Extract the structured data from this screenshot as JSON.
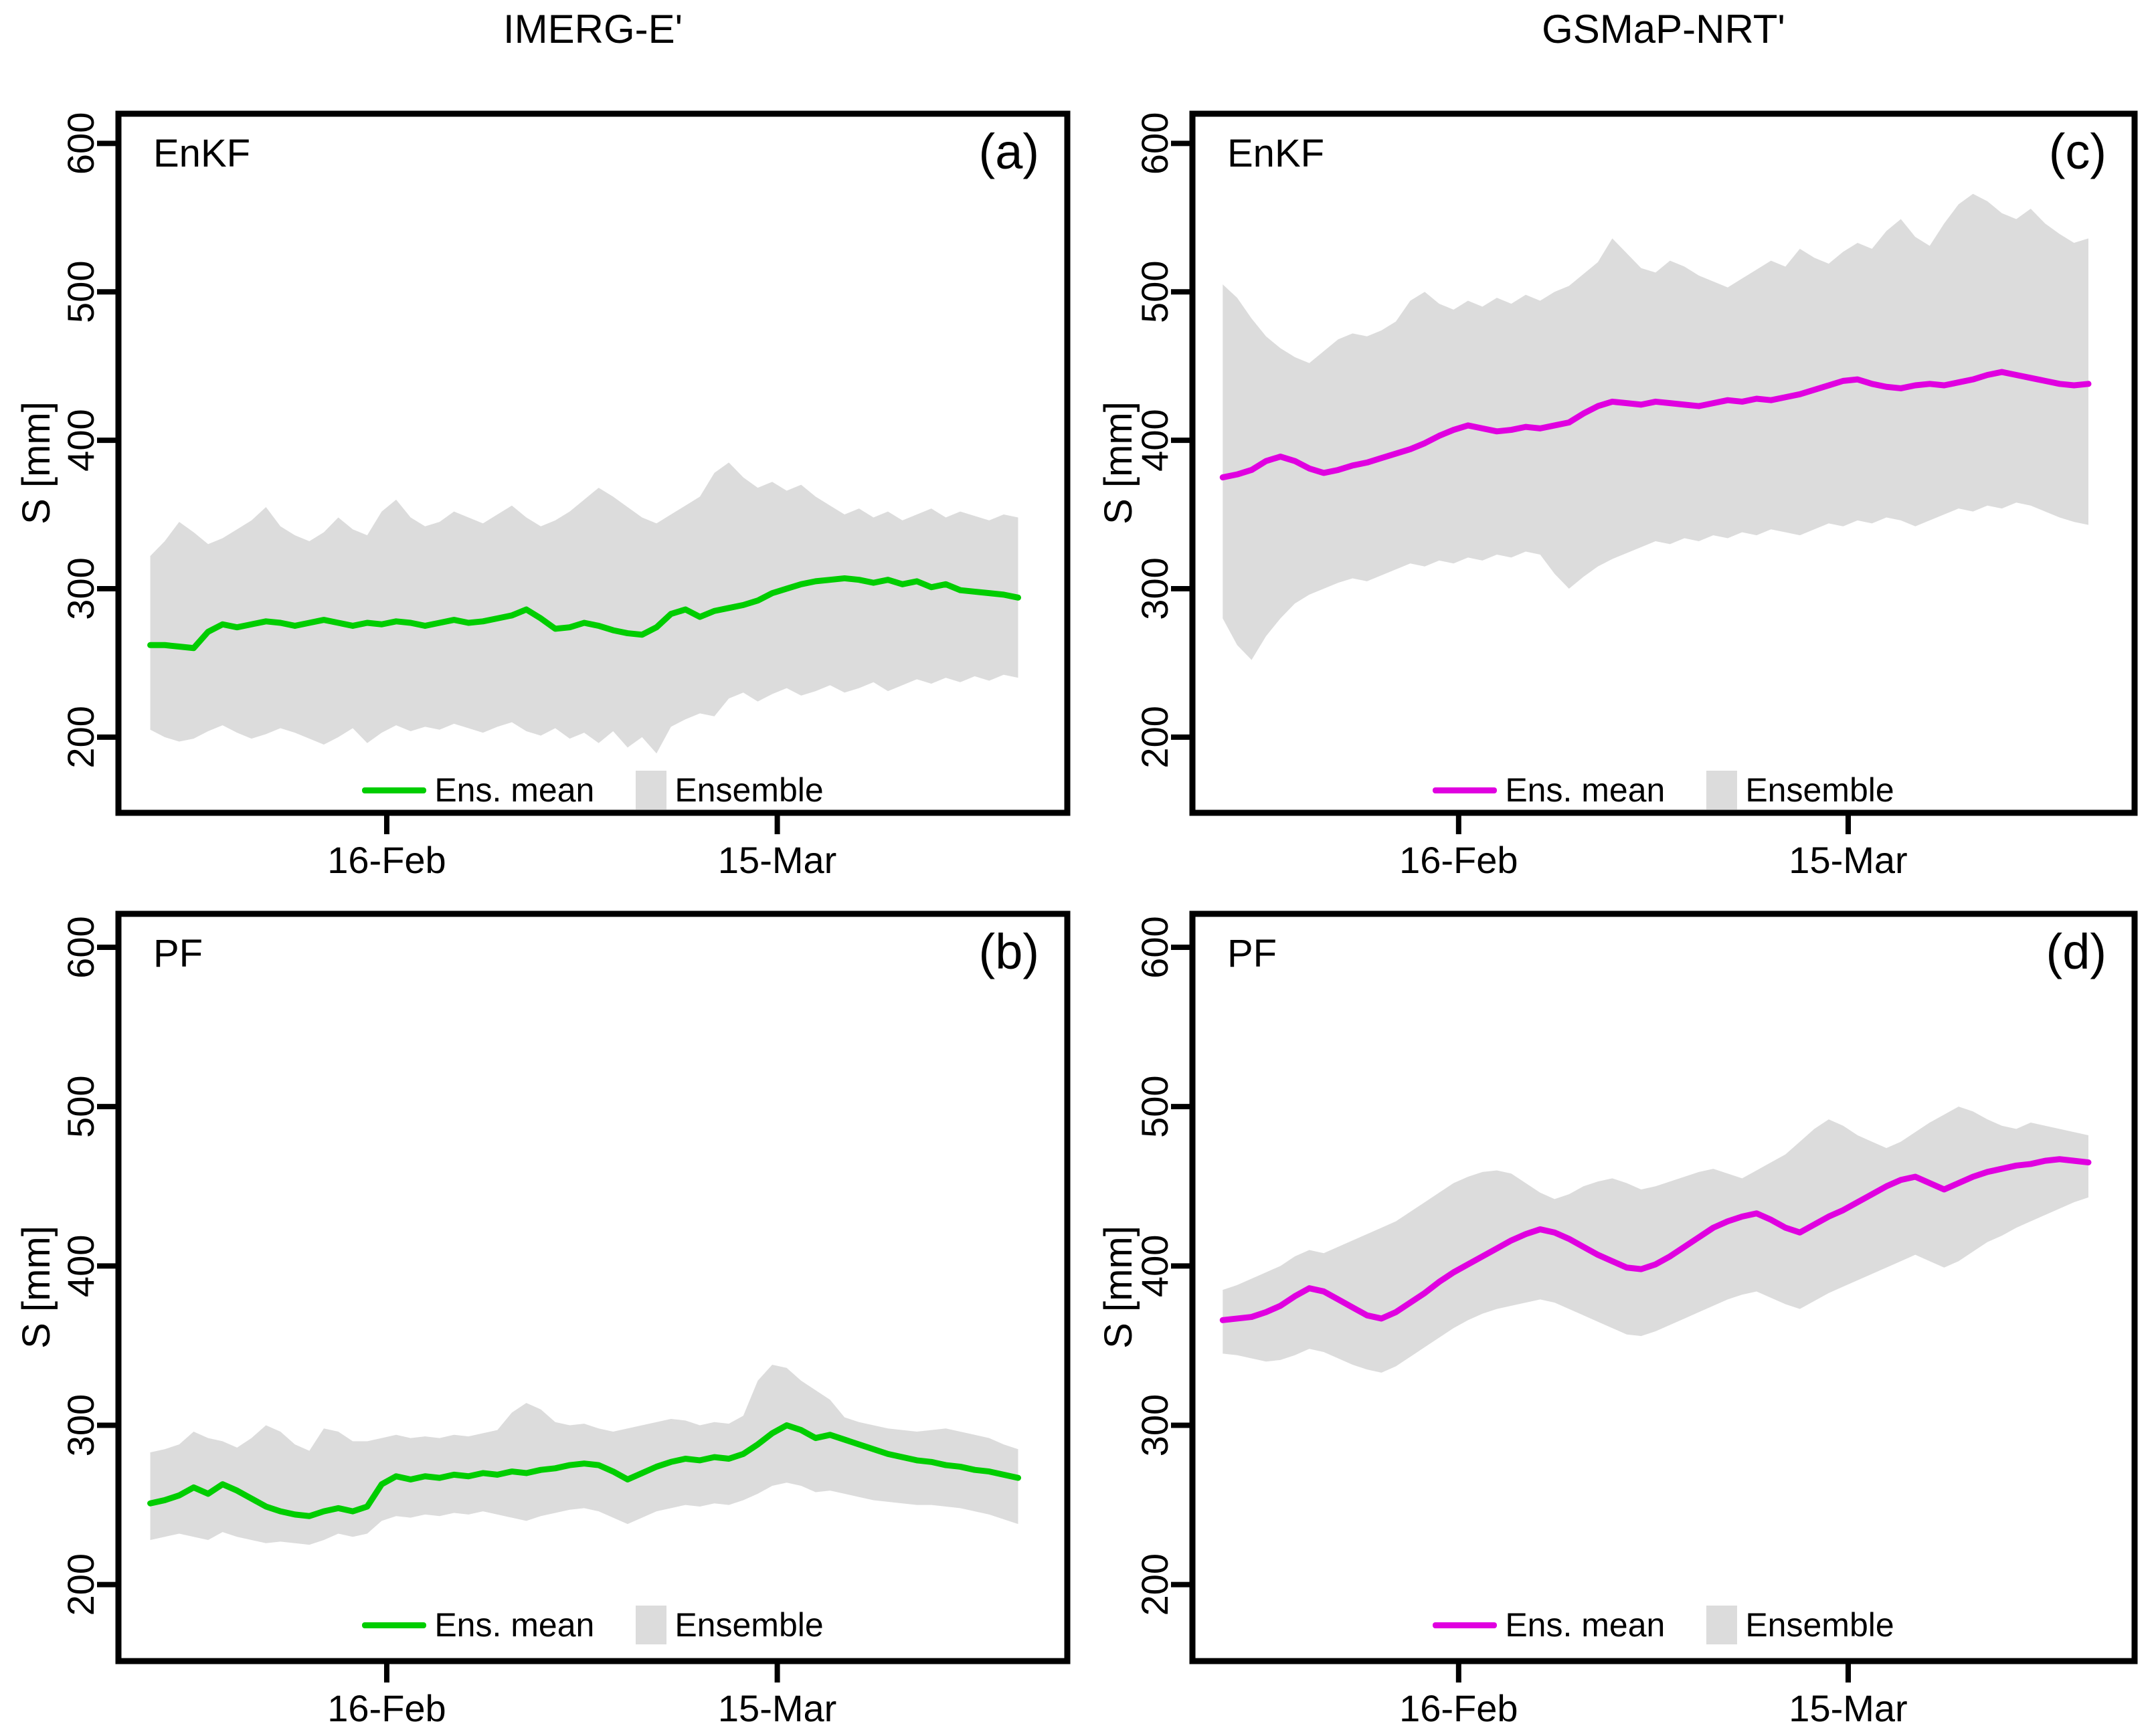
{
  "figure": {
    "col_titles": [
      "IMERG-E'",
      "GSMaP-NRT'"
    ],
    "y_axis_label": "S [mm]",
    "colors": {
      "imerg_mean": "#00cd00",
      "gsmap_mean": "#e000e0",
      "ensemble_fill": "#dcdcdc",
      "axis": "#000000",
      "background": "#ffffff"
    }
  },
  "chart_data": [
    {
      "id": "a",
      "type": "line+band",
      "panel_label": "(a)",
      "method_label": "EnKF",
      "column_title": "IMERG-E'",
      "title": "",
      "xlabel": "",
      "ylabel": "S [mm]",
      "grid": false,
      "legend_position": "bottom-center-inside",
      "ylim": [
        149,
        620
      ],
      "xlim": [
        -2.2,
        63.4
      ],
      "yticks": [
        200,
        300,
        400,
        500,
        600
      ],
      "xticks": [
        {
          "x": 16.35,
          "label": "16-Feb"
        },
        {
          "x": 43.35,
          "label": "15-Mar"
        }
      ],
      "x": [
        0,
        1,
        2,
        3,
        4,
        5,
        6,
        7,
        8,
        9,
        10,
        11,
        12,
        13,
        14,
        15,
        16,
        17,
        18,
        19,
        20,
        21,
        22,
        23,
        24,
        25,
        26,
        27,
        28,
        29,
        30,
        31,
        32,
        33,
        34,
        35,
        36,
        37,
        38,
        39,
        40,
        41,
        42,
        43,
        44,
        45,
        46,
        47,
        48,
        49,
        50,
        51,
        52,
        53,
        54,
        55,
        56,
        57,
        58,
        59,
        60
      ],
      "mean": {
        "name": "Ens. mean",
        "color": "#00cd00",
        "values": [
          262,
          262,
          261,
          260,
          271,
          276,
          274,
          276,
          278,
          277,
          275,
          277,
          279,
          277,
          275,
          277,
          276,
          278,
          277,
          275,
          277,
          279,
          277,
          278,
          280,
          282,
          286,
          280,
          273,
          274,
          277,
          275,
          272,
          270,
          269,
          274,
          283,
          286,
          281,
          285,
          287,
          289,
          292,
          297,
          300,
          303,
          305,
          306,
          307,
          306,
          304,
          306,
          303,
          305,
          301,
          303,
          299,
          298,
          297,
          296,
          294
        ]
      },
      "band": {
        "name": "Ensemble",
        "color": "#dcdcdc",
        "hi": [
          322,
          332,
          345,
          338,
          330,
          334,
          340,
          346,
          355,
          342,
          336,
          332,
          338,
          348,
          340,
          336,
          352,
          360,
          348,
          342,
          345,
          352,
          348,
          344,
          350,
          356,
          348,
          342,
          346,
          352,
          360,
          368,
          362,
          355,
          348,
          344,
          350,
          356,
          362,
          378,
          385,
          375,
          368,
          372,
          366,
          370,
          362,
          356,
          350,
          354,
          348,
          352,
          346,
          350,
          354,
          348,
          352,
          349,
          346,
          350,
          348
        ],
        "lo": [
          205,
          200,
          197,
          199,
          204,
          208,
          203,
          199,
          202,
          206,
          203,
          199,
          195,
          200,
          206,
          196,
          203,
          208,
          204,
          207,
          205,
          209,
          206,
          203,
          207,
          210,
          204,
          201,
          206,
          199,
          203,
          196,
          204,
          193,
          200,
          189,
          207,
          212,
          216,
          214,
          226,
          230,
          224,
          229,
          233,
          228,
          231,
          235,
          230,
          233,
          237,
          231,
          235,
          239,
          236,
          240,
          237,
          241,
          238,
          242,
          240
        ]
      }
    },
    {
      "id": "b",
      "type": "line+band",
      "panel_label": "(b)",
      "method_label": "PF",
      "column_title": "IMERG-E'",
      "title": "",
      "xlabel": "",
      "ylabel": "S [mm]",
      "grid": false,
      "legend_position": "bottom-center-inside",
      "ylim": [
        152,
        621
      ],
      "xlim": [
        -2.2,
        63.4
      ],
      "yticks": [
        200,
        300,
        400,
        500,
        600
      ],
      "xticks": [
        {
          "x": 16.35,
          "label": "16-Feb"
        },
        {
          "x": 43.35,
          "label": "15-Mar"
        }
      ],
      "x": [
        0,
        1,
        2,
        3,
        4,
        5,
        6,
        7,
        8,
        9,
        10,
        11,
        12,
        13,
        14,
        15,
        16,
        17,
        18,
        19,
        20,
        21,
        22,
        23,
        24,
        25,
        26,
        27,
        28,
        29,
        30,
        31,
        32,
        33,
        34,
        35,
        36,
        37,
        38,
        39,
        40,
        41,
        42,
        43,
        44,
        45,
        46,
        47,
        48,
        49,
        50,
        51,
        52,
        53,
        54,
        55,
        56,
        57,
        58,
        59,
        60
      ],
      "mean": {
        "name": "Ens. mean",
        "color": "#00cd00",
        "values": [
          251,
          253,
          256,
          261,
          257,
          263,
          259,
          254,
          249,
          246,
          244,
          243,
          246,
          248,
          246,
          249,
          263,
          268,
          266,
          268,
          267,
          269,
          268,
          270,
          269,
          271,
          270,
          272,
          273,
          275,
          276,
          275,
          271,
          266,
          270,
          274,
          277,
          279,
          278,
          280,
          279,
          282,
          288,
          295,
          300,
          297,
          292,
          294,
          291,
          288,
          285,
          282,
          280,
          278,
          277,
          275,
          274,
          272,
          271,
          269,
          267
        ]
      },
      "band": {
        "name": "Ensemble",
        "color": "#dcdcdc",
        "hi": [
          283,
          285,
          288,
          296,
          292,
          290,
          286,
          292,
          300,
          296,
          288,
          284,
          298,
          296,
          290,
          290,
          292,
          294,
          292,
          293,
          292,
          294,
          293,
          295,
          297,
          308,
          314,
          310,
          302,
          300,
          301,
          298,
          296,
          298,
          300,
          302,
          304,
          303,
          300,
          302,
          301,
          306,
          328,
          338,
          336,
          328,
          322,
          316,
          305,
          302,
          300,
          298,
          297,
          296,
          297,
          298,
          296,
          294,
          292,
          288,
          285
        ],
        "lo": [
          228,
          230,
          232,
          230,
          228,
          233,
          230,
          228,
          226,
          227,
          226,
          225,
          228,
          232,
          230,
          232,
          240,
          243,
          242,
          244,
          243,
          245,
          244,
          246,
          244,
          242,
          240,
          243,
          245,
          247,
          248,
          246,
          242,
          238,
          242,
          246,
          248,
          250,
          249,
          251,
          250,
          253,
          257,
          262,
          264,
          262,
          258,
          259,
          257,
          255,
          253,
          252,
          251,
          250,
          250,
          249,
          248,
          246,
          244,
          241,
          238
        ]
      }
    },
    {
      "id": "c",
      "type": "line+band",
      "panel_label": "(c)",
      "method_label": "EnKF",
      "column_title": "GSMaP-NRT'",
      "title": "",
      "xlabel": "",
      "ylabel": "S [mm]",
      "grid": false,
      "legend_position": "bottom-center-inside",
      "ylim": [
        149,
        620
      ],
      "xlim": [
        -2.1,
        63.2
      ],
      "yticks": [
        200,
        300,
        400,
        500,
        600
      ],
      "xticks": [
        {
          "x": 16.35,
          "label": "16-Feb"
        },
        {
          "x": 43.35,
          "label": "15-Mar"
        }
      ],
      "x": [
        0,
        1,
        2,
        3,
        4,
        5,
        6,
        7,
        8,
        9,
        10,
        11,
        12,
        13,
        14,
        15,
        16,
        17,
        18,
        19,
        20,
        21,
        22,
        23,
        24,
        25,
        26,
        27,
        28,
        29,
        30,
        31,
        32,
        33,
        34,
        35,
        36,
        37,
        38,
        39,
        40,
        41,
        42,
        43,
        44,
        45,
        46,
        47,
        48,
        49,
        50,
        51,
        52,
        53,
        54,
        55,
        56,
        57,
        58,
        59,
        60
      ],
      "mean": {
        "name": "Ens. mean",
        "color": "#e000e0",
        "values": [
          375,
          377,
          380,
          386,
          389,
          386,
          381,
          378,
          380,
          383,
          385,
          388,
          391,
          394,
          398,
          403,
          407,
          410,
          408,
          406,
          407,
          409,
          408,
          410,
          412,
          418,
          423,
          426,
          425,
          424,
          426,
          425,
          424,
          423,
          425,
          427,
          426,
          428,
          427,
          429,
          431,
          434,
          437,
          440,
          441,
          438,
          436,
          435,
          437,
          438,
          437,
          439,
          441,
          444,
          446,
          444,
          442,
          440,
          438,
          437,
          438
        ]
      },
      "band": {
        "name": "Ensemble",
        "color": "#dcdcdc",
        "hi": [
          505,
          496,
          482,
          470,
          462,
          456,
          452,
          460,
          468,
          472,
          470,
          474,
          480,
          494,
          500,
          492,
          488,
          494,
          490,
          496,
          492,
          498,
          494,
          500,
          504,
          512,
          520,
          536,
          526,
          516,
          513,
          521,
          517,
          511,
          507,
          503,
          509,
          515,
          521,
          517,
          529,
          523,
          519,
          527,
          533,
          529,
          541,
          549,
          537,
          531,
          546,
          559,
          566,
          561,
          553,
          549,
          556,
          546,
          539,
          533,
          536
        ],
        "lo": [
          280,
          262,
          252,
          268,
          280,
          290,
          296,
          300,
          304,
          307,
          305,
          309,
          313,
          317,
          315,
          319,
          317,
          321,
          319,
          323,
          321,
          325,
          323,
          310,
          300,
          308,
          315,
          320,
          324,
          328,
          332,
          330,
          334,
          332,
          336,
          334,
          338,
          336,
          340,
          338,
          336,
          340,
          344,
          342,
          346,
          344,
          348,
          346,
          342,
          346,
          350,
          354,
          352,
          356,
          354,
          358,
          356,
          352,
          348,
          345,
          343
        ]
      }
    },
    {
      "id": "d",
      "type": "line+band",
      "panel_label": "(d)",
      "method_label": "PF",
      "column_title": "GSMaP-NRT'",
      "title": "",
      "xlabel": "",
      "ylabel": "S [mm]",
      "grid": false,
      "legend_position": "bottom-center-inside",
      "ylim": [
        152,
        621
      ],
      "xlim": [
        -2.1,
        63.2
      ],
      "yticks": [
        200,
        300,
        400,
        500,
        600
      ],
      "xticks": [
        {
          "x": 16.35,
          "label": "16-Feb"
        },
        {
          "x": 43.35,
          "label": "15-Mar"
        }
      ],
      "x": [
        0,
        1,
        2,
        3,
        4,
        5,
        6,
        7,
        8,
        9,
        10,
        11,
        12,
        13,
        14,
        15,
        16,
        17,
        18,
        19,
        20,
        21,
        22,
        23,
        24,
        25,
        26,
        27,
        28,
        29,
        30,
        31,
        32,
        33,
        34,
        35,
        36,
        37,
        38,
        39,
        40,
        41,
        42,
        43,
        44,
        45,
        46,
        47,
        48,
        49,
        50,
        51,
        52,
        53,
        54,
        55,
        56,
        57,
        58,
        59,
        60
      ],
      "mean": {
        "name": "Ens. mean",
        "color": "#e000e0",
        "values": [
          366,
          367,
          368,
          371,
          375,
          381,
          386,
          384,
          379,
          374,
          369,
          367,
          371,
          377,
          383,
          390,
          396,
          401,
          406,
          411,
          416,
          420,
          423,
          421,
          417,
          412,
          407,
          403,
          399,
          398,
          401,
          406,
          412,
          418,
          424,
          428,
          431,
          433,
          429,
          424,
          421,
          426,
          431,
          435,
          440,
          445,
          450,
          454,
          456,
          452,
          448,
          452,
          456,
          459,
          461,
          463,
          464,
          466,
          467,
          466,
          465
        ]
      },
      "band": {
        "name": "Ensemble",
        "color": "#dcdcdc",
        "hi": [
          385,
          388,
          392,
          396,
          400,
          406,
          410,
          408,
          412,
          416,
          420,
          424,
          428,
          434,
          440,
          446,
          452,
          456,
          459,
          460,
          458,
          452,
          446,
          442,
          445,
          450,
          453,
          455,
          452,
          448,
          450,
          453,
          456,
          459,
          461,
          458,
          455,
          460,
          465,
          470,
          478,
          486,
          492,
          488,
          482,
          478,
          474,
          478,
          484,
          490,
          495,
          500,
          497,
          492,
          488,
          486,
          490,
          488,
          486,
          484,
          482
        ],
        "lo": [
          345,
          344,
          342,
          340,
          341,
          344,
          348,
          346,
          342,
          338,
          335,
          333,
          337,
          343,
          349,
          355,
          361,
          366,
          370,
          373,
          375,
          377,
          379,
          377,
          373,
          369,
          365,
          361,
          357,
          356,
          359,
          363,
          367,
          371,
          375,
          379,
          382,
          384,
          380,
          376,
          373,
          378,
          383,
          387,
          391,
          395,
          399,
          403,
          407,
          403,
          399,
          403,
          409,
          415,
          419,
          424,
          428,
          432,
          436,
          440,
          443
        ]
      }
    }
  ]
}
